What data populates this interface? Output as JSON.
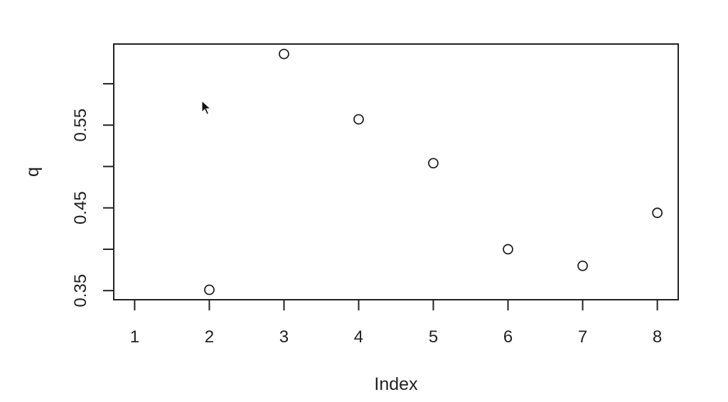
{
  "chart_data": {
    "type": "scatter",
    "title": "",
    "xlabel": "Index",
    "ylabel": "q",
    "x": [
      2,
      3,
      4,
      5,
      6,
      7,
      8
    ],
    "y": [
      0.351,
      0.636,
      0.557,
      0.504,
      0.4,
      0.38,
      0.444
    ],
    "xticks": [
      "1",
      "2",
      "3",
      "4",
      "5",
      "6",
      "7",
      "8"
    ],
    "yticks_labeled": [
      "0.35",
      "0.45",
      "0.55"
    ],
    "yticks_all": [
      0.35,
      0.4,
      0.45,
      0.5,
      0.55,
      0.6
    ],
    "xlim": [
      0.72,
      8.28
    ],
    "ylim": [
      0.339,
      0.648
    ],
    "grid": false,
    "legend": "none",
    "point_color": "#222222"
  },
  "cursor_icon": "arrow-pointer-icon"
}
